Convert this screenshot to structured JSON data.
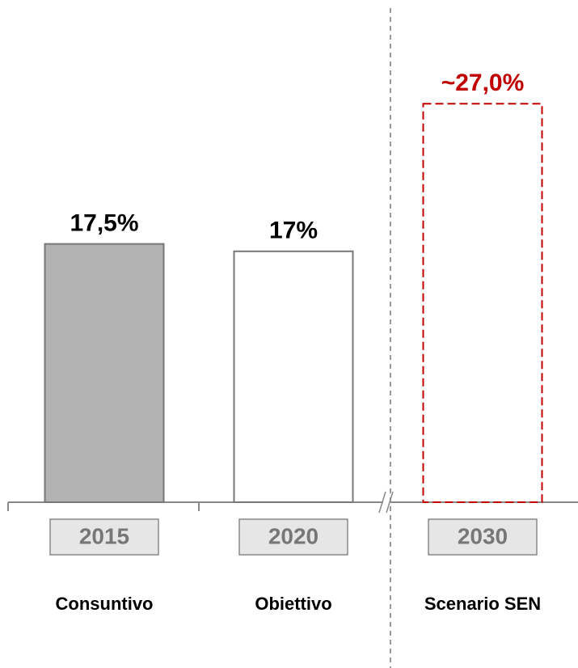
{
  "chart_data": {
    "type": "bar",
    "categories": [
      "2015",
      "2020",
      "2030"
    ],
    "sublabels": [
      "Consuntivo",
      "Obiettivo",
      "Scenario SEN"
    ],
    "values": [
      17.5,
      17,
      27
    ],
    "value_labels": [
      "17,5%",
      "17%",
      "~27,0%"
    ],
    "colors": [
      "#b3b3b3",
      "#ffffff",
      "none"
    ],
    "label_colors": [
      "#000000",
      "#000000",
      "#c00000"
    ],
    "stroke_colors": [
      "#777777",
      "#777777",
      "#c00000"
    ],
    "dashed": [
      false,
      false,
      true
    ]
  }
}
